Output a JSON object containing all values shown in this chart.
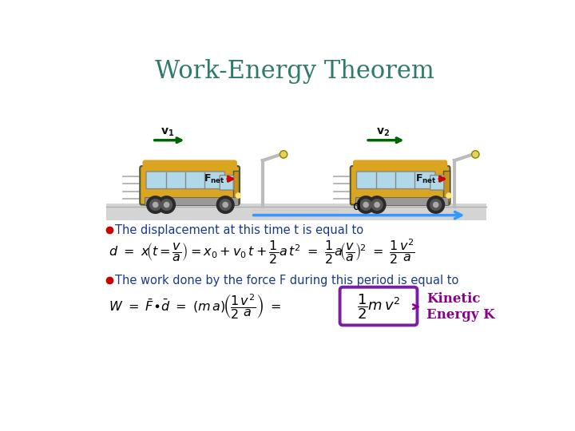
{
  "title": "Work-Energy Theorem",
  "title_color": "#2E7B6B",
  "title_fontsize": 22,
  "background_color": "#ffffff",
  "bullet1_text": "The displacement at this time t is equal to",
  "bullet2_text": "The work done by the force F during this period is equal to",
  "bullet_color": "#cc0000",
  "bullet_text_color": "#1a3a8a",
  "text_color": "#000000",
  "kinetic_label": "Kinetic\nEnergy K",
  "kinetic_color": "#8B008B",
  "box_color": "#7B1FA2",
  "eq_color": "#000000"
}
